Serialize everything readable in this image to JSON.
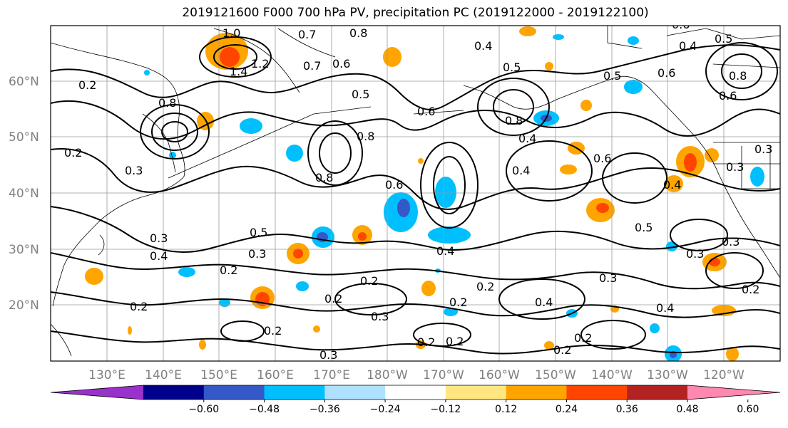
{
  "title": "2019121600 F000 700 hPa PV, precipitation PC (2019122000 - 2019122100)",
  "axes": {
    "lat_labels": [
      "20°N",
      "30°N",
      "40°N",
      "50°N",
      "60°N"
    ],
    "lon_labels": [
      "130°E",
      "140°E",
      "150°E",
      "160°E",
      "170°E",
      "180°W",
      "170°W",
      "160°W",
      "150°W",
      "140°W",
      "130°W",
      "120°W"
    ]
  },
  "colorbar": {
    "colors": [
      "#9932cc",
      "#00008b",
      "#3558c8",
      "#00bfff",
      "#aee0ff",
      "#ffffff",
      "#ffe680",
      "#ffa500",
      "#ff4500",
      "#b22222",
      "#ff88b0"
    ],
    "tick_labels": [
      "−0.60",
      "−0.48",
      "−0.36",
      "−0.24",
      "−0.12",
      "0.12",
      "0.24",
      "0.36",
      "0.48",
      "0.60"
    ]
  },
  "contour_labels": [
    "1.0",
    "0.7",
    "0.8",
    "1.4",
    "1.2",
    "0.8",
    "0.7",
    "0.6",
    "0.5",
    "0.4",
    "0.5",
    "0.6",
    "0.8",
    "0.8",
    "0.4",
    "0.8",
    "0.6",
    "0.5",
    "0.4",
    "0.6",
    "0.6",
    "0.4",
    "0.5",
    "0.6",
    "0.8",
    "0.3",
    "0.3",
    "0.4",
    "0.3",
    "0.2",
    "0.5",
    "0.3",
    "0.2",
    "0.2",
    "0.2",
    "0.3",
    "0.2",
    "0.2",
    "0.2",
    "0.4",
    "0.2",
    "0.4",
    "0.3",
    "0.3",
    "0.2",
    "0.5",
    "0.4",
    "0.6",
    "0.3",
    "0.3",
    "0.2",
    "0.4",
    "0.2",
    "0.2",
    "0.3",
    "0.2",
    "0.2"
  ]
}
